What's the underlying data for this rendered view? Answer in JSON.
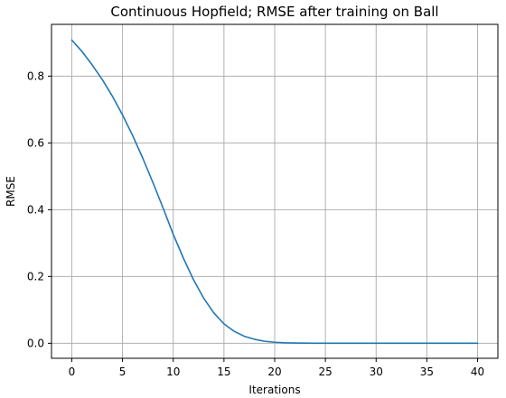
{
  "chart_data": {
    "type": "line",
    "title": "Continuous Hopfield; RMSE after training on Ball",
    "xlabel": "Iterations",
    "ylabel": "RMSE",
    "xlim": [
      -2,
      42
    ],
    "ylim": [
      -0.045,
      0.955
    ],
    "xticks": [
      0,
      5,
      10,
      15,
      20,
      25,
      30,
      35,
      40
    ],
    "xtick_labels": [
      "0",
      "5",
      "10",
      "15",
      "20",
      "25",
      "30",
      "35",
      "40"
    ],
    "yticks": [
      0.0,
      0.2,
      0.4,
      0.6,
      0.8
    ],
    "ytick_labels": [
      "0.0",
      "0.2",
      "0.4",
      "0.6",
      "0.8"
    ],
    "grid": true,
    "series": [
      {
        "color": "#1f77b4",
        "x": [
          0,
          1,
          2,
          3,
          4,
          5,
          6,
          7,
          8,
          9,
          10,
          11,
          12,
          13,
          14,
          15,
          16,
          17,
          18,
          19,
          20,
          21,
          22,
          23,
          24,
          25,
          26,
          27,
          28,
          29,
          30,
          31,
          32,
          33,
          34,
          35,
          36,
          37,
          38,
          39,
          40
        ],
        "y": [
          0.908,
          0.874,
          0.834,
          0.79,
          0.74,
          0.684,
          0.622,
          0.554,
          0.481,
          0.405,
          0.326,
          0.255,
          0.19,
          0.135,
          0.091,
          0.058,
          0.036,
          0.021,
          0.012,
          0.006,
          0.003,
          0.0015,
          0.0008,
          0.0004,
          0.0002,
          0.0001,
          0.0001,
          0.0,
          0.0,
          0.0,
          0.0,
          0.0,
          0.0,
          0.0,
          0.0,
          0.0,
          0.0,
          0.0,
          0.0,
          0.0,
          0.0
        ]
      }
    ]
  }
}
